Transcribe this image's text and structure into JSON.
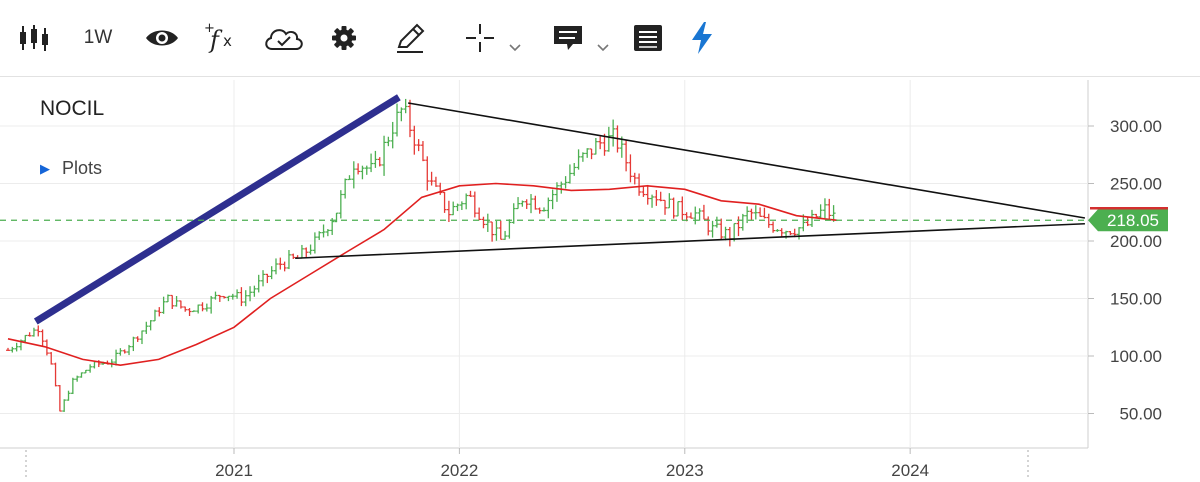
{
  "toolbar": {
    "timeframe_label": "1W",
    "icons": [
      "candlestick-icon",
      "eye-icon",
      "function-icon",
      "cloud-save-icon",
      "gear-icon",
      "pencil-icon",
      "crosshair-icon",
      "chevron-down-icon",
      "comment-icon",
      "chevron-down-icon",
      "list-icon",
      "lightning-icon"
    ],
    "accent_color": "#1976d2"
  },
  "chart_header": {
    "symbol": "NOCIL",
    "plots_label": "Plots"
  },
  "colors": {
    "up": "#4caf50",
    "down": "#e53935",
    "moving_average": "#e02020",
    "trendline": "#111111",
    "thick_trendline": "#2e2f8f",
    "current_price_line": "#4caf50",
    "price_badge": "#4caf50",
    "grid": "#ececec"
  },
  "chart_data": {
    "type": "ohlc",
    "symbol": "NOCIL",
    "interval": "1W",
    "x_range": [
      "2020-01-01",
      "2024-10-15"
    ],
    "y_range": [
      20,
      340
    ],
    "y_ticks": [
      "50.00",
      "100.00",
      "150.00",
      "200.00",
      "250.00",
      "300.00"
    ],
    "x_ticks": [
      "2021",
      "2022",
      "2023",
      "2024"
    ],
    "grid": true,
    "last_price": "218.05",
    "close_path": [
      [
        "2020-01-01",
        105
      ],
      [
        "2020-02-01",
        118
      ],
      [
        "2020-02-20",
        125
      ],
      [
        "2020-03-10",
        95
      ],
      [
        "2020-03-25",
        52
      ],
      [
        "2020-04-15",
        78
      ],
      [
        "2020-05-15",
        92
      ],
      [
        "2020-06-15",
        95
      ],
      [
        "2020-07-15",
        110
      ],
      [
        "2020-08-15",
        128
      ],
      [
        "2020-09-15",
        150
      ],
      [
        "2020-10-15",
        140
      ],
      [
        "2020-11-15",
        145
      ],
      [
        "2020-12-15",
        155
      ],
      [
        "2021-01-15",
        150
      ],
      [
        "2021-02-15",
        165
      ],
      [
        "2021-03-15",
        180
      ],
      [
        "2021-04-15",
        185
      ],
      [
        "2021-05-15",
        200
      ],
      [
        "2021-06-15",
        225
      ],
      [
        "2021-07-15",
        270
      ],
      [
        "2021-08-15",
        260
      ],
      [
        "2021-09-15",
        300
      ],
      [
        "2021-10-01",
        315
      ],
      [
        "2021-10-20",
        290
      ],
      [
        "2021-11-15",
        250
      ],
      [
        "2021-12-15",
        225
      ],
      [
        "2022-01-15",
        240
      ],
      [
        "2022-02-15",
        215
      ],
      [
        "2022-03-10",
        200
      ],
      [
        "2022-04-15",
        240
      ],
      [
        "2022-05-15",
        230
      ],
      [
        "2022-06-15",
        250
      ],
      [
        "2022-07-15",
        270
      ],
      [
        "2022-08-15",
        285
      ],
      [
        "2022-09-10",
        290
      ],
      [
        "2022-10-15",
        250
      ],
      [
        "2022-11-15",
        240
      ],
      [
        "2022-12-15",
        228
      ],
      [
        "2023-01-15",
        225
      ],
      [
        "2023-02-15",
        210
      ],
      [
        "2023-03-15",
        205
      ],
      [
        "2023-04-15",
        225
      ],
      [
        "2023-05-15",
        215
      ],
      [
        "2023-06-15",
        210
      ],
      [
        "2023-07-15",
        212
      ],
      [
        "2023-08-15",
        228
      ],
      [
        "2023-09-05",
        218
      ]
    ],
    "moving_average": [
      [
        "2020-01-01",
        115
      ],
      [
        "2020-03-01",
        108
      ],
      [
        "2020-05-01",
        97
      ],
      [
        "2020-07-01",
        92
      ],
      [
        "2020-09-01",
        97
      ],
      [
        "2020-11-01",
        110
      ],
      [
        "2021-01-01",
        125
      ],
      [
        "2021-03-01",
        150
      ],
      [
        "2021-05-01",
        170
      ],
      [
        "2021-07-01",
        190
      ],
      [
        "2021-09-01",
        210
      ],
      [
        "2021-11-01",
        238
      ],
      [
        "2022-01-01",
        248
      ],
      [
        "2022-03-01",
        250
      ],
      [
        "2022-05-01",
        248
      ],
      [
        "2022-07-01",
        244
      ],
      [
        "2022-09-01",
        245
      ],
      [
        "2022-11-01",
        248
      ],
      [
        "2023-01-01",
        245
      ],
      [
        "2023-03-01",
        235
      ],
      [
        "2023-05-01",
        232
      ],
      [
        "2023-07-01",
        222
      ],
      [
        "2023-09-05",
        218
      ]
    ],
    "trendlines": [
      {
        "style": "thin",
        "from": [
          "2021-10-10",
          320
        ],
        "to": [
          "2024-10-10",
          220
        ]
      },
      {
        "style": "thin",
        "from": [
          "2021-04-10",
          185
        ],
        "to": [
          "2024-10-10",
          215
        ]
      },
      {
        "style": "thick",
        "from": [
          "2020-02-15",
          130
        ],
        "to": [
          "2021-09-25",
          325
        ]
      }
    ]
  }
}
